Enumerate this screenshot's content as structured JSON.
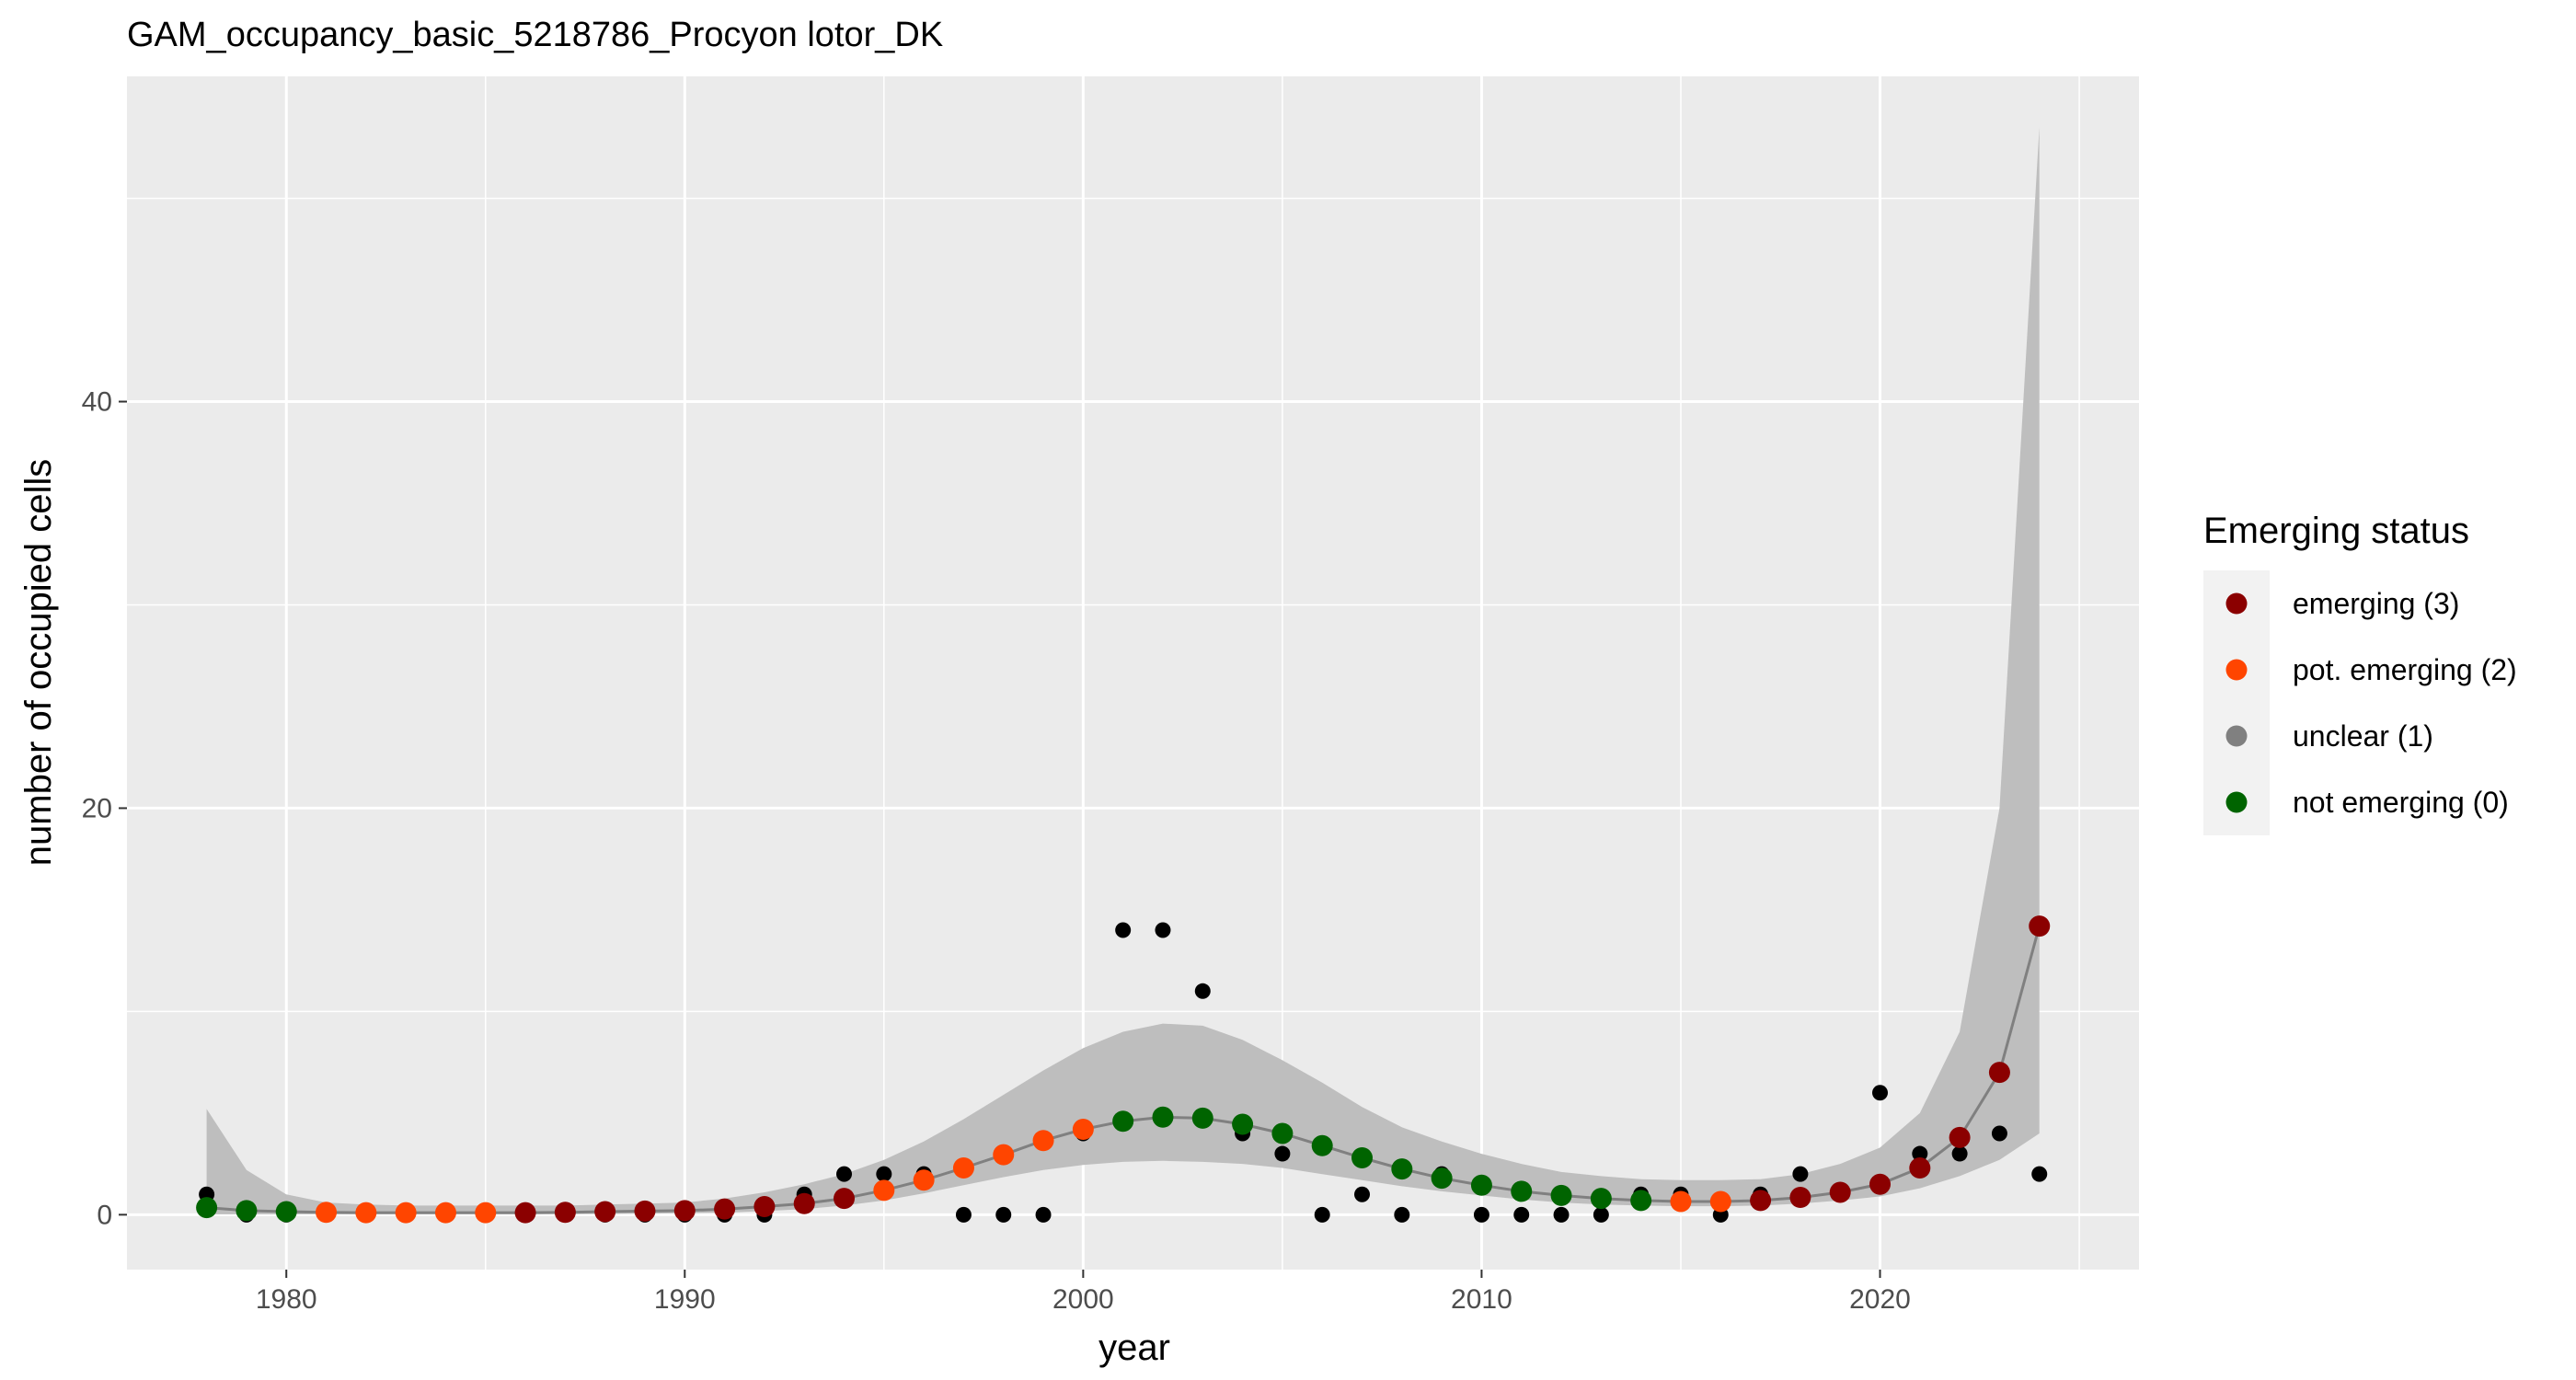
{
  "chart_data": {
    "type": "scatter",
    "title": "GAM_occupancy_basic_5218786_Procyon lotor_DK",
    "xlabel": "year",
    "ylabel": "number of occupied cells",
    "xlim": [
      1976,
      2026.5
    ],
    "ylim": [
      -2.7,
      56
    ],
    "x_ticks": [
      1980,
      1990,
      2000,
      2010,
      2020
    ],
    "y_ticks": [
      0,
      20,
      40
    ],
    "grid": true,
    "legend": {
      "title": "Emerging status",
      "placement": "right",
      "entries": [
        {
          "label": "emerging (3)",
          "color": "#8B0000"
        },
        {
          "label": "pot. emerging (2)",
          "color": "#FF4500"
        },
        {
          "label": "unclear (1)",
          "color": "#808080"
        },
        {
          "label": "not emerging (0)",
          "color": "#006400"
        }
      ]
    },
    "colors": {
      "panel": "#EBEBEB",
      "ribbon": "#BEBEBE",
      "fit_line": "#808080",
      "observed": "#000000"
    },
    "observed": {
      "x": [
        1978,
        1979,
        1980,
        1981,
        1982,
        1983,
        1984,
        1985,
        1986,
        1987,
        1988,
        1989,
        1990,
        1991,
        1992,
        1993,
        1994,
        1995,
        1996,
        1997,
        1998,
        1999,
        2000,
        2001,
        2002,
        2003,
        2004,
        2005,
        2006,
        2007,
        2008,
        2009,
        2010,
        2011,
        2012,
        2013,
        2014,
        2015,
        2016,
        2017,
        2018,
        2019,
        2020,
        2021,
        2022,
        2023,
        2024
      ],
      "y": [
        1,
        0,
        0,
        0,
        0,
        0,
        0,
        0,
        0,
        0,
        0,
        0,
        0,
        0,
        0,
        1,
        2,
        2,
        2,
        0,
        0,
        0,
        4,
        14,
        14,
        11,
        4,
        3,
        0,
        1,
        0,
        2,
        0,
        0,
        0,
        0,
        1,
        1,
        0,
        1,
        2,
        1,
        6,
        3,
        3,
        4,
        2
      ]
    },
    "fitted": {
      "x": [
        1978,
        1979,
        1980,
        1981,
        1982,
        1983,
        1984,
        1985,
        1986,
        1987,
        1988,
        1989,
        1990,
        1991,
        1992,
        1993,
        1994,
        1995,
        1996,
        1997,
        1998,
        1999,
        2000,
        2001,
        2002,
        2003,
        2004,
        2005,
        2006,
        2007,
        2008,
        2009,
        2010,
        2011,
        2012,
        2013,
        2014,
        2015,
        2016,
        2017,
        2018,
        2019,
        2020,
        2021,
        2022,
        2023,
        2024
      ],
      "y": [
        0.35,
        0.2,
        0.15,
        0.12,
        0.1,
        0.1,
        0.1,
        0.1,
        0.1,
        0.12,
        0.15,
        0.18,
        0.2,
        0.28,
        0.4,
        0.55,
        0.8,
        1.2,
        1.7,
        2.3,
        2.95,
        3.65,
        4.2,
        4.6,
        4.8,
        4.75,
        4.45,
        4.0,
        3.4,
        2.8,
        2.25,
        1.8,
        1.45,
        1.15,
        0.95,
        0.8,
        0.7,
        0.65,
        0.65,
        0.7,
        0.85,
        1.1,
        1.5,
        2.3,
        3.8,
        7.0,
        14.2
      ],
      "lower": [
        0.02,
        0.02,
        0.02,
        0.02,
        0.02,
        0.02,
        0.02,
        0.02,
        0.02,
        0.03,
        0.04,
        0.05,
        0.07,
        0.1,
        0.18,
        0.28,
        0.45,
        0.7,
        1.05,
        1.45,
        1.85,
        2.2,
        2.45,
        2.6,
        2.65,
        2.6,
        2.5,
        2.3,
        2.0,
        1.7,
        1.4,
        1.15,
        0.95,
        0.75,
        0.6,
        0.5,
        0.45,
        0.42,
        0.42,
        0.45,
        0.55,
        0.7,
        0.9,
        1.3,
        1.9,
        2.7,
        4.0
      ],
      "upper": [
        5.2,
        2.2,
        1.0,
        0.6,
        0.5,
        0.45,
        0.45,
        0.45,
        0.45,
        0.45,
        0.5,
        0.55,
        0.6,
        0.8,
        1.1,
        1.5,
        2.0,
        2.7,
        3.6,
        4.7,
        5.9,
        7.1,
        8.2,
        9.0,
        9.4,
        9.3,
        8.6,
        7.6,
        6.5,
        5.3,
        4.3,
        3.6,
        3.0,
        2.5,
        2.1,
        1.9,
        1.75,
        1.7,
        1.7,
        1.75,
        2.0,
        2.5,
        3.3,
        5.0,
        9.0,
        20.0,
        53.5
      ],
      "status": [
        0,
        0,
        0,
        2,
        2,
        2,
        2,
        2,
        3,
        3,
        3,
        3,
        3,
        3,
        3,
        3,
        3,
        2,
        2,
        2,
        2,
        2,
        2,
        0,
        0,
        0,
        0,
        0,
        0,
        0,
        0,
        0,
        0,
        0,
        0,
        0,
        0,
        2,
        2,
        3,
        3,
        3,
        3,
        3,
        3,
        3,
        3
      ]
    }
  }
}
